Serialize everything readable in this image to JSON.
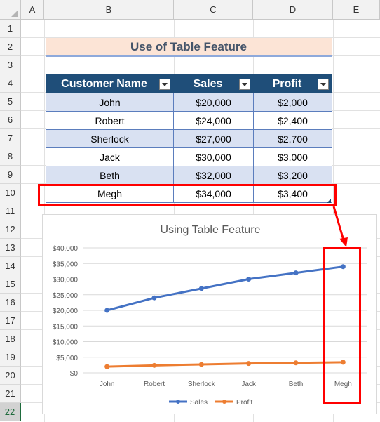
{
  "spreadsheet": {
    "columns": [
      "A",
      "B",
      "C",
      "D",
      "E"
    ],
    "rows": [
      "1",
      "2",
      "3",
      "4",
      "5",
      "6",
      "7",
      "8",
      "9",
      "10",
      "11",
      "12",
      "13",
      "14",
      "15",
      "16",
      "17",
      "18",
      "19",
      "20",
      "21",
      "22"
    ],
    "active_row": "22"
  },
  "title": "Use of Table Feature",
  "table": {
    "headers": [
      "Customer Name",
      "Sales",
      "Profit"
    ],
    "rows": [
      [
        "John",
        "$20,000",
        "$2,000"
      ],
      [
        "Robert",
        "$24,000",
        "$2,400"
      ],
      [
        "Sherlock",
        "$27,000",
        "$2,700"
      ],
      [
        "Jack",
        "$30,000",
        "$3,000"
      ],
      [
        "Beth",
        "$32,000",
        "$3,200"
      ],
      [
        "Megh",
        "$34,000",
        "$3,400"
      ]
    ]
  },
  "chart_data": {
    "type": "line",
    "title": "Using Table Feature",
    "categories": [
      "John",
      "Robert",
      "Sherlock",
      "Jack",
      "Beth",
      "Megh"
    ],
    "series": [
      {
        "name": "Sales",
        "values": [
          20000,
          24000,
          27000,
          30000,
          32000,
          34000
        ],
        "color": "#4472c4"
      },
      {
        "name": "Profit",
        "values": [
          2000,
          2400,
          2700,
          3000,
          3200,
          3400
        ],
        "color": "#ed7d31"
      }
    ],
    "y_tick_labels": [
      "$0",
      "$5,000",
      "$10,000",
      "$15,000",
      "$20,000",
      "$25,000",
      "$30,000",
      "$35,000",
      "$40,000"
    ],
    "ylim": [
      0,
      40000
    ],
    "grid": true,
    "legend": "bottom"
  },
  "colors": {
    "header_bg": "#1f4e79",
    "band_bg": "#d9e1f2",
    "title_bg": "#fce4d6",
    "highlight": "#ff0000"
  }
}
